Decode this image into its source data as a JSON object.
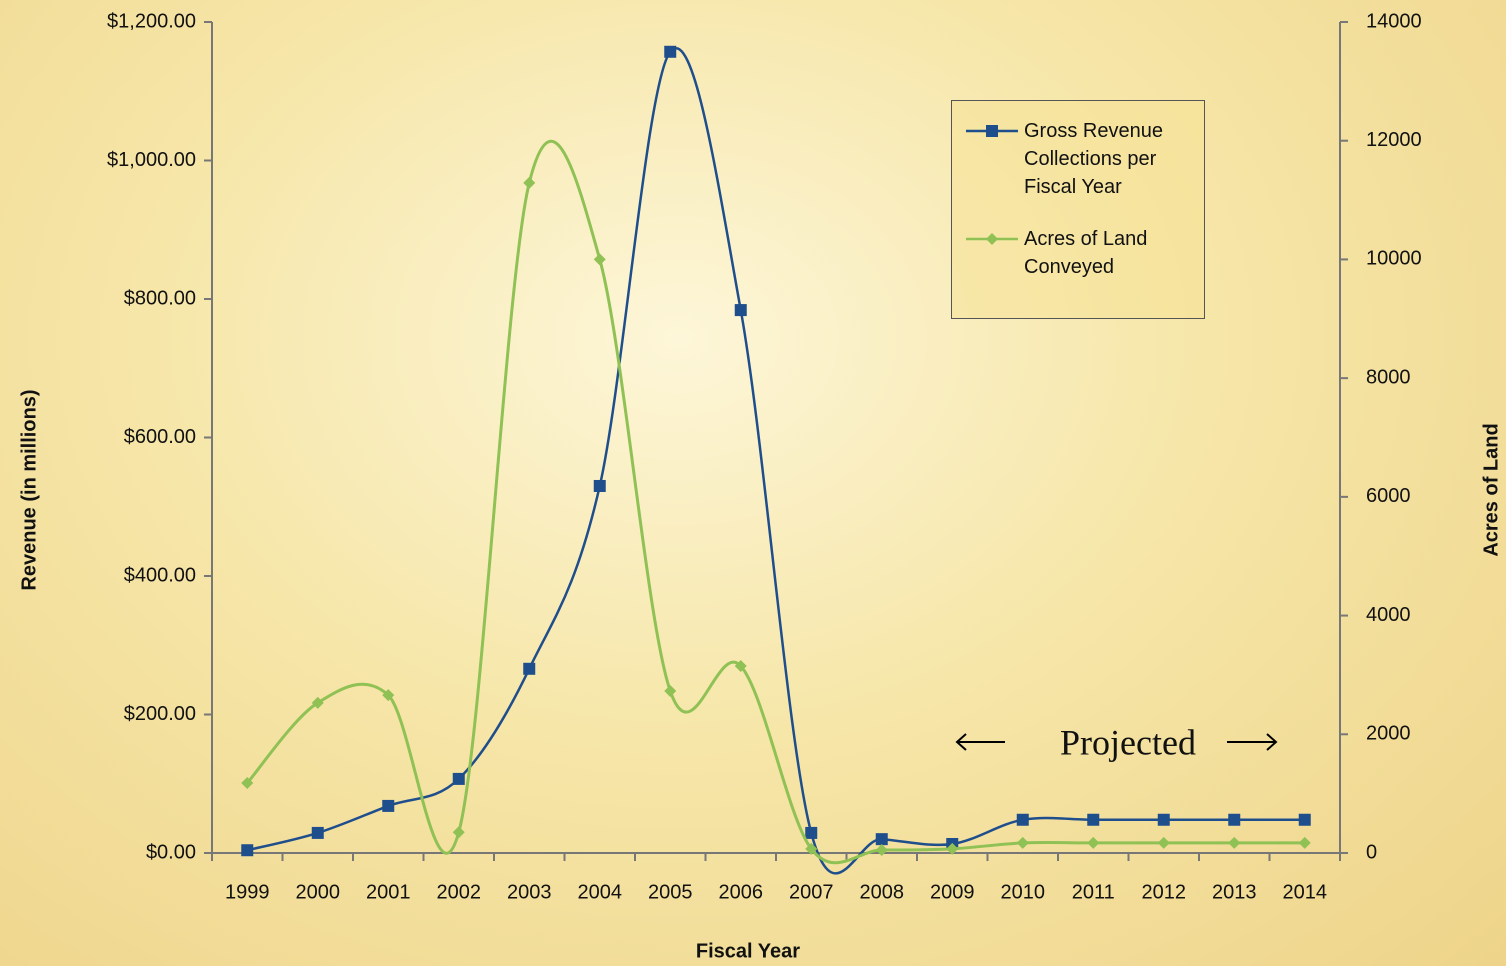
{
  "chart_data": {
    "type": "line",
    "categories": [
      "1999",
      "2000",
      "2001",
      "2002",
      "2003",
      "2004",
      "2005",
      "2006",
      "2007",
      "2008",
      "2009",
      "2010",
      "2011",
      "2012",
      "2013",
      "2014"
    ],
    "series": [
      {
        "name": "Gross Revenue Collections per Fiscal Year",
        "color": "#1f4e8c",
        "marker": "square",
        "values": [
          4,
          29,
          68,
          107,
          266,
          530,
          1157,
          784,
          29,
          20,
          13,
          48,
          48,
          48,
          48,
          48
        ]
      },
      {
        "name": "Acres of Land Conveyed",
        "color": "#8fc155",
        "marker": "diamond",
        "axis": "y2",
        "values": [
          1180,
          2530,
          2660,
          350,
          11290,
          10000,
          2730,
          3150,
          70,
          50,
          70,
          170,
          170,
          170,
          170,
          170
        ]
      }
    ],
    "ylabel": "Revenue (in millions)",
    "xlabel": "Fiscal Year",
    "y2label": "Acres of Land",
    "ylim": [
      0,
      1200
    ],
    "yticks": [
      {
        "value": 0,
        "label": "$0.00"
      },
      {
        "value": 200,
        "label": "$200.00"
      },
      {
        "value": 400,
        "label": "$400.00"
      },
      {
        "value": 600,
        "label": "$600.00"
      },
      {
        "value": 800,
        "label": "$800.00"
      },
      {
        "value": 1000,
        "label": "$1,000.00"
      },
      {
        "value": 1200,
        "label": "$1,200.00"
      }
    ],
    "y2lim": [
      0,
      14000
    ],
    "y2ticks": [
      0,
      2000,
      4000,
      6000,
      8000,
      10000,
      12000,
      14000
    ],
    "annotation": "Projected",
    "smooth": true
  }
}
